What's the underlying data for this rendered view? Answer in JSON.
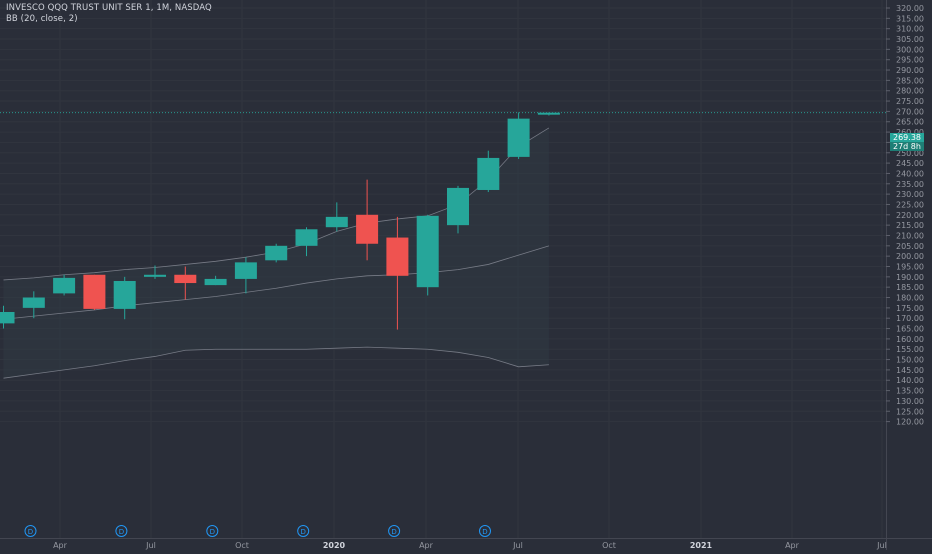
{
  "header": {
    "title": "INVESCO QQQ TRUST UNIT SER 1, 1M, NASDAQ",
    "indicator": "BB (20, close, 2)"
  },
  "price_axis": {
    "last_price": "269.38",
    "countdown": "27d 8h"
  },
  "colors": {
    "background": "#2a2e39",
    "up": "#26a69a",
    "down": "#ef5350",
    "band": "#8a8d98",
    "grid": "#31353f",
    "axis_text": "#9598a1",
    "dividend": "#2196f3"
  },
  "chart_data": {
    "type": "candlestick",
    "timeframe": "1M",
    "x_ticks": [
      "Apr",
      "Jul",
      "Oct",
      "2020",
      "Apr",
      "Jul",
      "Oct",
      "2021",
      "Apr",
      "Jul"
    ],
    "y_ticks": [
      "120.00",
      "125.00",
      "130.00",
      "135.00",
      "140.00",
      "145.00",
      "150.00",
      "155.00",
      "160.00",
      "165.00",
      "170.00",
      "175.00",
      "180.00",
      "185.00",
      "190.00",
      "195.00",
      "200.00",
      "205.00",
      "210.00",
      "215.00",
      "220.00",
      "225.00",
      "230.00",
      "235.00",
      "240.00",
      "245.00",
      "250.00",
      "255.00",
      "260.00",
      "265.00",
      "270.00",
      "275.00",
      "280.00",
      "285.00",
      "290.00",
      "295.00",
      "300.00",
      "305.00",
      "310.00",
      "315.00",
      "320.00"
    ],
    "ylim": [
      117.5,
      322.5
    ],
    "candles": [
      {
        "o": 167.5,
        "h": 176.0,
        "l": 165.0,
        "c": 173.0
      },
      {
        "o": 175.0,
        "h": 183.0,
        "l": 170.0,
        "c": 180.0
      },
      {
        "o": 182.0,
        "h": 191.0,
        "l": 181.0,
        "c": 189.5
      },
      {
        "o": 191.0,
        "h": 191.0,
        "l": 174.0,
        "c": 174.5
      },
      {
        "o": 174.5,
        "h": 190.0,
        "l": 169.5,
        "c": 188.0
      },
      {
        "o": 190.0,
        "h": 195.5,
        "l": 189.0,
        "c": 191.0
      },
      {
        "o": 191.0,
        "h": 195.0,
        "l": 179.0,
        "c": 187.0
      },
      {
        "o": 186.0,
        "h": 190.5,
        "l": 186.0,
        "c": 189.0
      },
      {
        "o": 189.0,
        "h": 199.5,
        "l": 182.0,
        "c": 197.0
      },
      {
        "o": 198.0,
        "h": 206.0,
        "l": 197.0,
        "c": 205.0
      },
      {
        "o": 205.0,
        "h": 214.0,
        "l": 200.0,
        "c": 213.0
      },
      {
        "o": 214.0,
        "h": 226.0,
        "l": 212.0,
        "c": 219.0
      },
      {
        "o": 220.0,
        "h": 237.0,
        "l": 198.0,
        "c": 206.0
      },
      {
        "o": 209.0,
        "h": 219.0,
        "l": 164.5,
        "c": 190.5
      },
      {
        "o": 185.0,
        "h": 220.0,
        "l": 181.0,
        "c": 219.5
      },
      {
        "o": 215.0,
        "h": 234.0,
        "l": 211.0,
        "c": 233.0
      },
      {
        "o": 232.0,
        "h": 251.0,
        "l": 231.0,
        "c": 247.5
      },
      {
        "o": 248.0,
        "h": 269.5,
        "l": 247.0,
        "c": 266.5
      },
      {
        "o": 268.5,
        "h": 269.5,
        "l": 268.0,
        "c": 269.38
      }
    ],
    "bollinger": {
      "upper": [
        188.5,
        189.5,
        191.0,
        192.0,
        193.5,
        194.5,
        196.0,
        197.5,
        199.5,
        202.0,
        206.0,
        212.0,
        216.0,
        218.0,
        219.5,
        225.0,
        237.0,
        253.0,
        262.0
      ],
      "basis": [
        169.5,
        171.0,
        172.5,
        174.0,
        176.0,
        177.5,
        179.0,
        180.5,
        182.5,
        184.5,
        187.0,
        189.0,
        190.5,
        191.0,
        192.0,
        193.5,
        196.0,
        200.5,
        205.0
      ],
      "lower": [
        141.0,
        143.0,
        145.0,
        147.0,
        149.5,
        151.5,
        154.5,
        155.0,
        155.0,
        155.0,
        155.0,
        155.5,
        156.0,
        155.5,
        155.0,
        153.5,
        151.0,
        146.5,
        147.5
      ]
    },
    "dividend_markers": {
      "label": "D",
      "candle_index": [
        0,
        3,
        6,
        9,
        12,
        15
      ]
    },
    "grid": true
  }
}
